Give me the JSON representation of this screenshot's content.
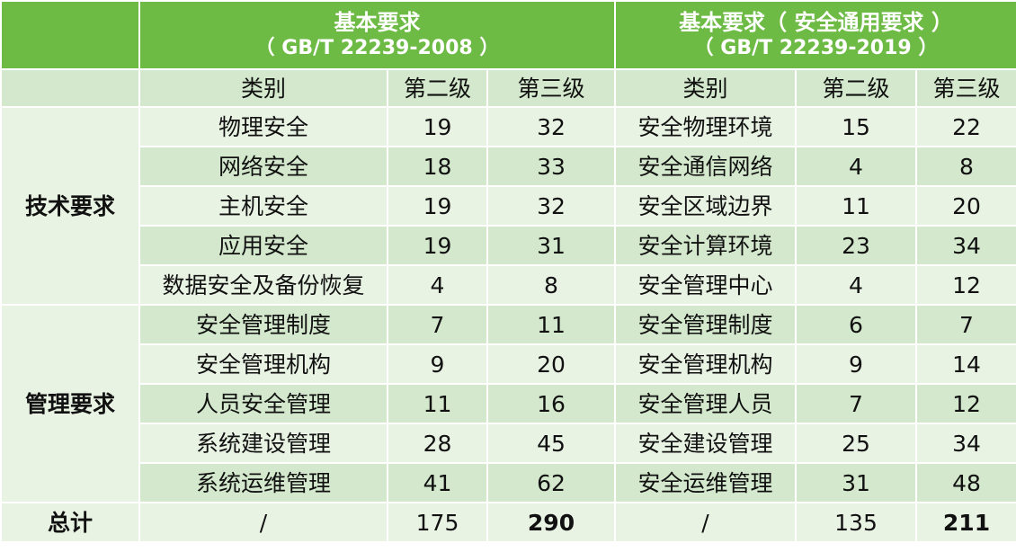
{
  "header": {
    "left_title": "基本要求",
    "left_std": "（ GB/T 22239-2008 ）",
    "right_title": "基本要求（ 安全通用要求 ）",
    "right_std": "（ GB/T 22239-2019 ）"
  },
  "subheader": {
    "category": "类别",
    "level2": "第二级",
    "level3": "第三级",
    "category2": "类别",
    "level2b": "第二级",
    "level3b": "第三级"
  },
  "groups": {
    "tech": "技术要求",
    "mgmt": "管理要求"
  },
  "rows": [
    {
      "old_cat": "物理安全",
      "old_l2": "19",
      "old_l3": "32",
      "new_cat": "安全物理环境",
      "new_l2": "15",
      "new_l3": "22"
    },
    {
      "old_cat": "网络安全",
      "old_l2": "18",
      "old_l3": "33",
      "new_cat": "安全通信网络",
      "new_l2": "4",
      "new_l3": "8"
    },
    {
      "old_cat": "主机安全",
      "old_l2": "19",
      "old_l3": "32",
      "new_cat": "安全区域边界",
      "new_l2": "11",
      "new_l3": "20"
    },
    {
      "old_cat": "应用安全",
      "old_l2": "19",
      "old_l3": "31",
      "new_cat": "安全计算环境",
      "new_l2": "23",
      "new_l3": "34"
    },
    {
      "old_cat": "数据安全及备份恢复",
      "old_l2": "4",
      "old_l3": "8",
      "new_cat": "安全管理中心",
      "new_l2": "4",
      "new_l3": "12"
    },
    {
      "old_cat": "安全管理制度",
      "old_l2": "7",
      "old_l3": "11",
      "new_cat": "安全管理制度",
      "new_l2": "6",
      "new_l3": "7"
    },
    {
      "old_cat": "安全管理机构",
      "old_l2": "9",
      "old_l3": "20",
      "new_cat": "安全管理机构",
      "new_l2": "9",
      "new_l3": "14"
    },
    {
      "old_cat": "人员安全管理",
      "old_l2": "11",
      "old_l3": "16",
      "new_cat": "安全管理人员",
      "new_l2": "7",
      "new_l3": "12"
    },
    {
      "old_cat": "系统建设管理",
      "old_l2": "28",
      "old_l3": "45",
      "new_cat": "安全建设管理",
      "new_l2": "25",
      "new_l3": "34"
    },
    {
      "old_cat": "系统运维管理",
      "old_l2": "41",
      "old_l3": "62",
      "new_cat": "安全运维管理",
      "new_l2": "31",
      "new_l3": "48"
    }
  ],
  "total": {
    "label": "总计",
    "old_cat": "/",
    "old_l2": "175",
    "old_l3": "290",
    "new_cat": "/",
    "new_l2": "135",
    "new_l3": "211"
  },
  "colors": {
    "header_green": "#6dbb45",
    "row_light": "#e9f3e4",
    "row_dark": "#d3e8cc"
  }
}
